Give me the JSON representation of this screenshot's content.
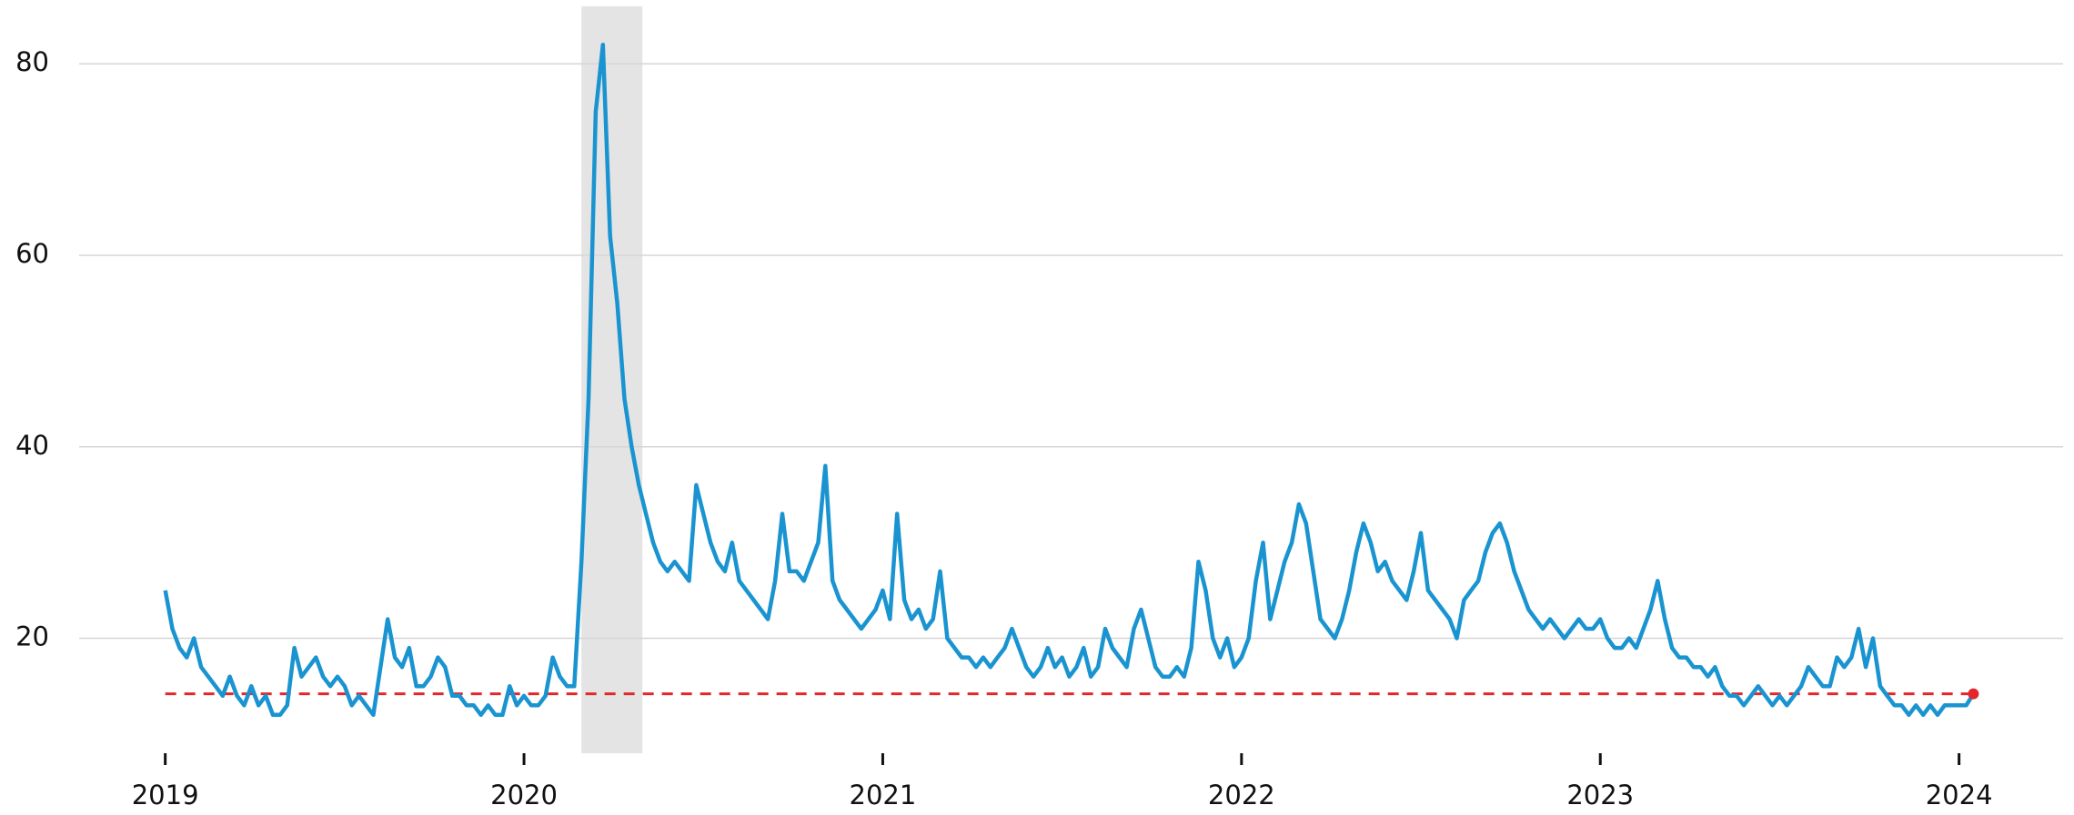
{
  "chart_data": {
    "type": "line",
    "color": "#1a94d0",
    "marker_color": "#e3262b",
    "grid": true,
    "xlim": [
      2018.76,
      2024.29
    ],
    "ylim": [
      8,
      86
    ],
    "xticks": [
      2019,
      2020,
      2021,
      2022,
      2023,
      2024
    ],
    "yticks": [
      20,
      40,
      60,
      80
    ],
    "shaded_region": {
      "x": [
        2020.16,
        2020.33
      ],
      "color": "#e4e4e4"
    },
    "reference_line": {
      "value": 14.2,
      "color": "#e3262b",
      "style": "dashed"
    },
    "x": [
      2019.0,
      2019.02,
      2019.04,
      2019.06,
      2019.08,
      2019.1,
      2019.12,
      2019.14,
      2019.16,
      2019.18,
      2019.2,
      2019.22,
      2019.24,
      2019.26,
      2019.28,
      2019.3,
      2019.32,
      2019.34,
      2019.36,
      2019.38,
      2019.4,
      2019.42,
      2019.44,
      2019.46,
      2019.48,
      2019.5,
      2019.52,
      2019.54,
      2019.56,
      2019.58,
      2019.6,
      2019.62,
      2019.64,
      2019.66,
      2019.68,
      2019.7,
      2019.72,
      2019.74,
      2019.76,
      2019.78,
      2019.8,
      2019.82,
      2019.84,
      2019.86,
      2019.88,
      2019.9,
      2019.92,
      2019.94,
      2019.96,
      2019.98,
      2020.0,
      2020.02,
      2020.04,
      2020.06,
      2020.08,
      2020.1,
      2020.12,
      2020.14,
      2020.16,
      2020.18,
      2020.2,
      2020.22,
      2020.24,
      2020.26,
      2020.28,
      2020.3,
      2020.32,
      2020.34,
      2020.36,
      2020.38,
      2020.4,
      2020.42,
      2020.44,
      2020.46,
      2020.48,
      2020.5,
      2020.52,
      2020.54,
      2020.56,
      2020.58,
      2020.6,
      2020.62,
      2020.64,
      2020.66,
      2020.68,
      2020.7,
      2020.72,
      2020.74,
      2020.76,
      2020.78,
      2020.8,
      2020.82,
      2020.84,
      2020.86,
      2020.88,
      2020.9,
      2020.92,
      2020.94,
      2020.96,
      2020.98,
      2021.0,
      2021.02,
      2021.04,
      2021.06,
      2021.08,
      2021.1,
      2021.12,
      2021.14,
      2021.16,
      2021.18,
      2021.2,
      2021.22,
      2021.24,
      2021.26,
      2021.28,
      2021.3,
      2021.32,
      2021.34,
      2021.36,
      2021.38,
      2021.4,
      2021.42,
      2021.44,
      2021.46,
      2021.48,
      2021.5,
      2021.52,
      2021.54,
      2021.56,
      2021.58,
      2021.6,
      2021.62,
      2021.64,
      2021.66,
      2021.68,
      2021.7,
      2021.72,
      2021.74,
      2021.76,
      2021.78,
      2021.8,
      2021.82,
      2021.84,
      2021.86,
      2021.88,
      2021.9,
      2021.92,
      2021.94,
      2021.96,
      2021.98,
      2022.0,
      2022.02,
      2022.04,
      2022.06,
      2022.08,
      2022.1,
      2022.12,
      2022.14,
      2022.16,
      2022.18,
      2022.2,
      2022.22,
      2022.24,
      2022.26,
      2022.28,
      2022.3,
      2022.32,
      2022.34,
      2022.36,
      2022.38,
      2022.4,
      2022.42,
      2022.44,
      2022.46,
      2022.48,
      2022.5,
      2022.52,
      2022.54,
      2022.56,
      2022.58,
      2022.6,
      2022.62,
      2022.64,
      2022.66,
      2022.68,
      2022.7,
      2022.72,
      2022.74,
      2022.76,
      2022.78,
      2022.8,
      2022.82,
      2022.84,
      2022.86,
      2022.88,
      2022.9,
      2022.92,
      2022.94,
      2022.96,
      2022.98,
      2023.0,
      2023.02,
      2023.04,
      2023.06,
      2023.08,
      2023.1,
      2023.12,
      2023.14,
      2023.16,
      2023.18,
      2023.2,
      2023.22,
      2023.24,
      2023.26,
      2023.28,
      2023.3,
      2023.32,
      2023.34,
      2023.36,
      2023.38,
      2023.4,
      2023.42,
      2023.44,
      2023.46,
      2023.48,
      2023.5,
      2023.52,
      2023.54,
      2023.56,
      2023.58,
      2023.6,
      2023.62,
      2023.64,
      2023.66,
      2023.68,
      2023.7,
      2023.72,
      2023.74,
      2023.76,
      2023.78,
      2023.8,
      2023.82,
      2023.84,
      2023.86,
      2023.88,
      2023.9,
      2023.92,
      2023.94,
      2023.96,
      2023.98,
      2024.0,
      2024.02,
      2024.04
    ],
    "values": [
      25,
      21,
      19,
      18,
      20,
      17,
      16,
      15,
      14,
      16,
      14,
      13,
      15,
      13,
      14,
      12,
      12,
      13,
      19,
      16,
      17,
      18,
      16,
      15,
      16,
      15,
      13,
      14,
      13,
      12,
      17,
      22,
      18,
      17,
      19,
      15,
      15,
      16,
      18,
      17,
      14,
      14,
      13,
      13,
      12,
      13,
      12,
      12,
      15,
      13,
      14,
      13,
      13,
      14,
      18,
      16,
      15,
      15,
      28,
      45,
      75,
      82,
      62,
      55,
      45,
      40,
      36,
      33,
      30,
      28,
      27,
      28,
      27,
      26,
      36,
      33,
      30,
      28,
      27,
      30,
      26,
      25,
      24,
      23,
      22,
      26,
      33,
      27,
      27,
      26,
      28,
      30,
      38,
      26,
      24,
      23,
      22,
      21,
      22,
      23,
      25,
      22,
      33,
      24,
      22,
      23,
      21,
      22,
      27,
      20,
      19,
      18,
      18,
      17,
      18,
      17,
      18,
      19,
      21,
      19,
      17,
      16,
      17,
      19,
      17,
      18,
      16,
      17,
      19,
      16,
      17,
      21,
      19,
      18,
      17,
      21,
      23,
      20,
      17,
      16,
      16,
      17,
      16,
      19,
      28,
      25,
      20,
      18,
      20,
      17,
      18,
      20,
      26,
      30,
      22,
      25,
      28,
      30,
      34,
      32,
      27,
      22,
      21,
      20,
      22,
      25,
      29,
      32,
      30,
      27,
      28,
      26,
      25,
      24,
      27,
      31,
      25,
      24,
      23,
      22,
      20,
      24,
      25,
      26,
      29,
      31,
      32,
      30,
      27,
      25,
      23,
      22,
      21,
      22,
      21,
      20,
      21,
      22,
      21,
      21,
      22,
      20,
      19,
      19,
      20,
      19,
      21,
      23,
      26,
      22,
      19,
      18,
      18,
      17,
      17,
      16,
      17,
      15,
      14,
      14,
      13,
      14,
      15,
      14,
      13,
      14,
      13,
      14,
      15,
      17,
      16,
      15,
      15,
      18,
      17,
      18,
      21,
      17,
      20,
      15,
      14,
      13,
      13,
      12,
      13,
      12,
      13,
      12,
      13,
      13,
      13,
      13,
      14.2
    ]
  }
}
